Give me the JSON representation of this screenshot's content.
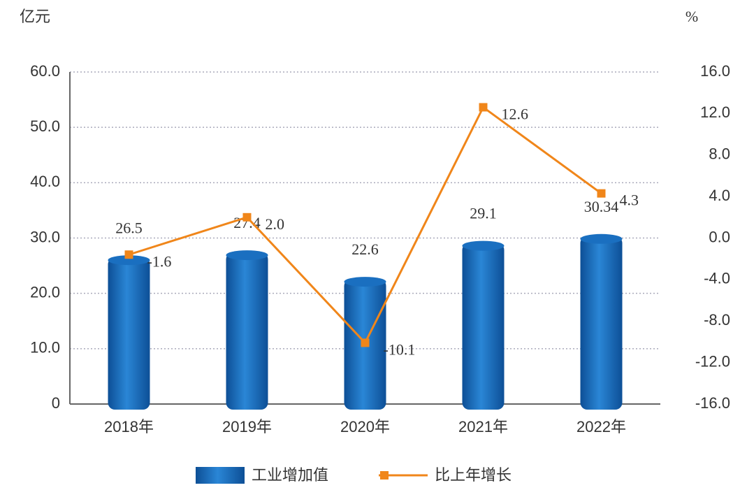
{
  "chart_data": {
    "type": "bar",
    "ylabel": "亿元",
    "y2label": "%",
    "categories": [
      "2018年",
      "2019年",
      "2020年",
      "2021年",
      "2022年"
    ],
    "series": [
      {
        "name": "工业增加值",
        "type": "bar",
        "color": "#1a6fc0",
        "values": [
          26.5,
          27.4,
          22.6,
          29.1,
          30.34
        ]
      },
      {
        "name": "比上年增长",
        "type": "line",
        "axis": "y2",
        "color": "#f0861a",
        "values": [
          -1.6,
          2,
          -10.1,
          12.6,
          4.3
        ],
        "value_labels": [
          "-1.6",
          "2.0",
          "-10.1",
          "12.6",
          "4.3"
        ]
      }
    ],
    "ylim": [
      0,
      60
    ],
    "yticks": [
      0,
      {
        "value": 10,
        "label": "10.0"
      },
      {
        "value": 20,
        "label": "20.0"
      },
      {
        "value": 30,
        "label": "30.0"
      },
      {
        "value": 40,
        "label": "40.0"
      },
      {
        "value": 50,
        "label": "50.0"
      },
      {
        "value": 60,
        "label": "60.0"
      }
    ],
    "y2lim": [
      -16,
      16
    ],
    "y2ticks": [
      {
        "value": -16,
        "label": "-16.0"
      },
      {
        "value": -12,
        "label": "-12.0"
      },
      {
        "value": -8,
        "label": "-8.0"
      },
      {
        "value": -4,
        "label": "-4.0"
      },
      {
        "value": 0,
        "label": "0.0"
      },
      {
        "value": 4,
        "label": "4.0"
      },
      {
        "value": 8,
        "label": "8.0"
      },
      {
        "value": 12,
        "label": "12.0"
      },
      {
        "value": 16,
        "label": "16.0"
      }
    ],
    "grid": true
  }
}
